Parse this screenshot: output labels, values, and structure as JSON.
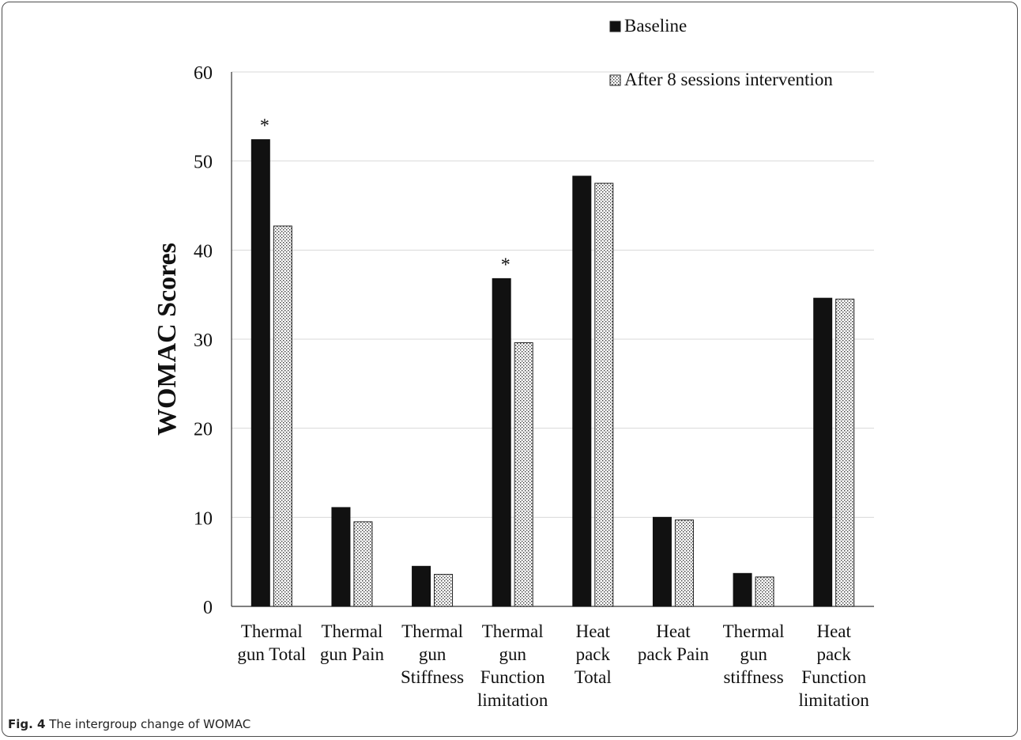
{
  "caption": {
    "label": "Fig. 4",
    "text": "The intergroup change of WOMAC"
  },
  "chart_data": {
    "type": "bar",
    "title": "",
    "xlabel": "",
    "ylabel": "WOMAC Scores",
    "ylim": [
      0,
      60
    ],
    "yticks": [
      0,
      10,
      20,
      30,
      40,
      50,
      60
    ],
    "grid": true,
    "legend_position": "top-right",
    "categories": [
      [
        "Thermal",
        "gun Total"
      ],
      [
        "Thermal",
        "gun Pain"
      ],
      [
        "Thermal",
        "gun",
        "Stiffness"
      ],
      [
        "Thermal",
        "gun",
        "Function",
        "limitation"
      ],
      [
        "Heat",
        "pack",
        "Total"
      ],
      [
        "Heat",
        "pack Pain"
      ],
      [
        "Thermal",
        "gun",
        "stiffness"
      ],
      [
        "Heat",
        "pack",
        "Function",
        "limitation"
      ]
    ],
    "series": [
      {
        "name": "Baseline",
        "color": "#111111",
        "pattern": "solid",
        "values": [
          52.4,
          11.1,
          4.5,
          36.8,
          48.3,
          10.0,
          3.7,
          34.6
        ]
      },
      {
        "name": "After 8 sessions intervention",
        "color": "#444444",
        "pattern": "dotted",
        "values": [
          42.7,
          9.5,
          3.6,
          29.6,
          47.5,
          9.7,
          3.3,
          34.5
        ]
      }
    ],
    "significance": [
      "*",
      "",
      "",
      "*",
      "",
      "",
      "",
      ""
    ]
  }
}
